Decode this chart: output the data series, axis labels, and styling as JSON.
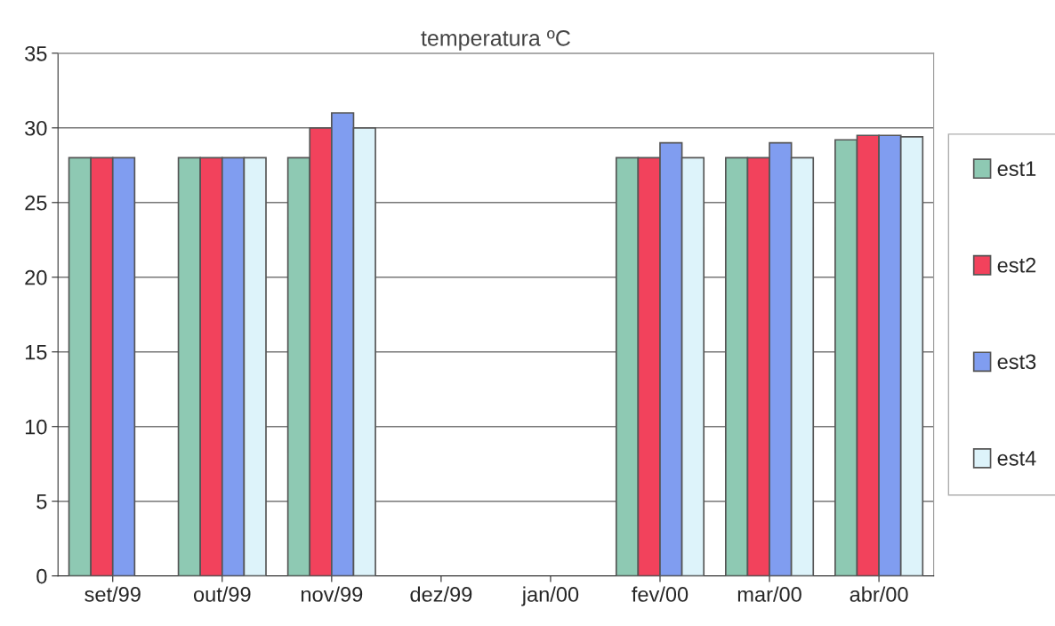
{
  "chart_data": {
    "type": "bar",
    "title": "temperatura ºC",
    "categories": [
      "set/99",
      "out/99",
      "nov/99",
      "dez/99",
      "jan/00",
      "fev/00",
      "mar/00",
      "abr/00"
    ],
    "series": [
      {
        "name": "est1",
        "color": "#8ec9b3",
        "values": [
          28,
          28,
          28,
          null,
          null,
          28,
          28,
          29.2
        ]
      },
      {
        "name": "est2",
        "color": "#f2425c",
        "values": [
          28,
          28,
          30,
          null,
          null,
          28,
          28,
          29.5
        ]
      },
      {
        "name": "est3",
        "color": "#809df0",
        "values": [
          28,
          28,
          31,
          null,
          null,
          29,
          29,
          29.5
        ]
      },
      {
        "name": "est4",
        "color": "#ddf3fa",
        "values": [
          null,
          28,
          30,
          null,
          null,
          28,
          28,
          29.4
        ]
      }
    ],
    "ylim": [
      0,
      35
    ],
    "yticks": [
      0,
      5,
      10,
      15,
      20,
      25,
      30,
      35
    ],
    "grid": "y",
    "legend": "right"
  }
}
